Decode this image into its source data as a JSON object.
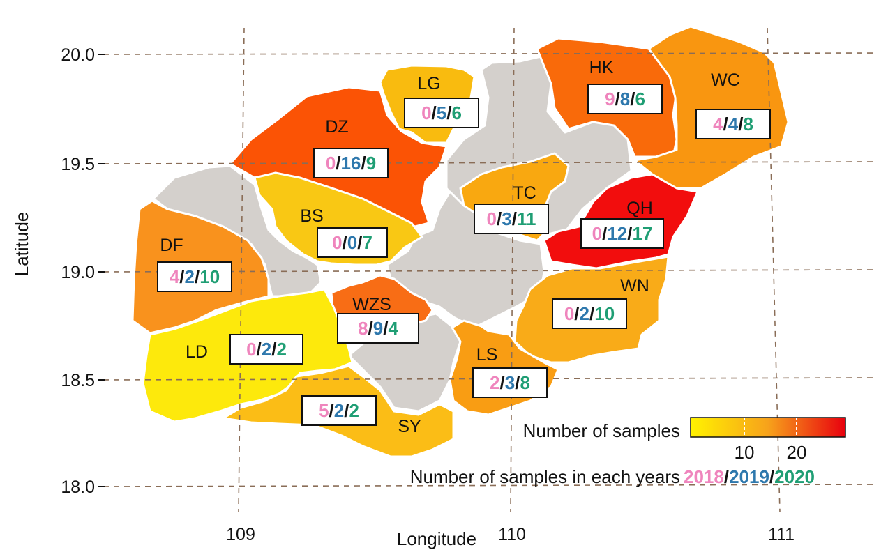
{
  "axes": {
    "x_title": "Longitude",
    "y_title": "Latitude",
    "x_ticks": [
      "109",
      "110",
      "111"
    ],
    "y_ticks": [
      "20.0",
      "19.5",
      "19.0",
      "18.5",
      "18.0"
    ]
  },
  "colors": {
    "year_2018": "#ef85bd",
    "year_2019": "#2e78ad",
    "year_2020": "#1f9e74",
    "unsampled": "#d4d0cc",
    "scale_low": "#fff200",
    "scale_mid": "#f7a21b",
    "scale_high": "#e8000e"
  },
  "regions": [
    {
      "code": "LG",
      "counts": [
        "0",
        "5",
        "6"
      ],
      "total": 11,
      "color": "#f9bb0f"
    },
    {
      "code": "DZ",
      "counts": [
        "0",
        "16",
        "9"
      ],
      "total": 25,
      "color": "#fb5305"
    },
    {
      "code": "HK",
      "counts": [
        "9",
        "8",
        "6"
      ],
      "total": 23,
      "color": "#f96a0a"
    },
    {
      "code": "WC",
      "counts": [
        "4",
        "4",
        "8"
      ],
      "total": 16,
      "color": "#f99610"
    },
    {
      "code": "TC",
      "counts": [
        "0",
        "3",
        "11"
      ],
      "total": 14,
      "color": "#f9a810"
    },
    {
      "code": "QH",
      "counts": [
        "0",
        "12",
        "17"
      ],
      "total": 29,
      "color": "#f20d0d"
    },
    {
      "code": "BS",
      "counts": [
        "0",
        "0",
        "7"
      ],
      "total": 7,
      "color": "#f9c814"
    },
    {
      "code": "DF",
      "counts": [
        "4",
        "2",
        "10"
      ],
      "total": 16,
      "color": "#f9921d"
    },
    {
      "code": "WZS",
      "counts": [
        "8",
        "9",
        "4"
      ],
      "total": 21,
      "color": "#f86d15"
    },
    {
      "code": "WN",
      "counts": [
        "0",
        "2",
        "10"
      ],
      "total": 12,
      "color": "#f9ab18"
    },
    {
      "code": "LD",
      "counts": [
        "0",
        "2",
        "2"
      ],
      "total": 4,
      "color": "#fde90c"
    },
    {
      "code": "LS",
      "counts": [
        "2",
        "3",
        "8"
      ],
      "total": 13,
      "color": "#f99d13"
    },
    {
      "code": "SY",
      "counts": [
        "5",
        "2",
        "2"
      ],
      "total": 9,
      "color": "#fbbd16"
    }
  ],
  "legend": {
    "scale_title": "Number of samples",
    "scale_ticks": [
      "10",
      "20"
    ],
    "years_title": "Number of samples in each years",
    "years": [
      "2018",
      "2019",
      "2020"
    ],
    "separator": "/"
  }
}
